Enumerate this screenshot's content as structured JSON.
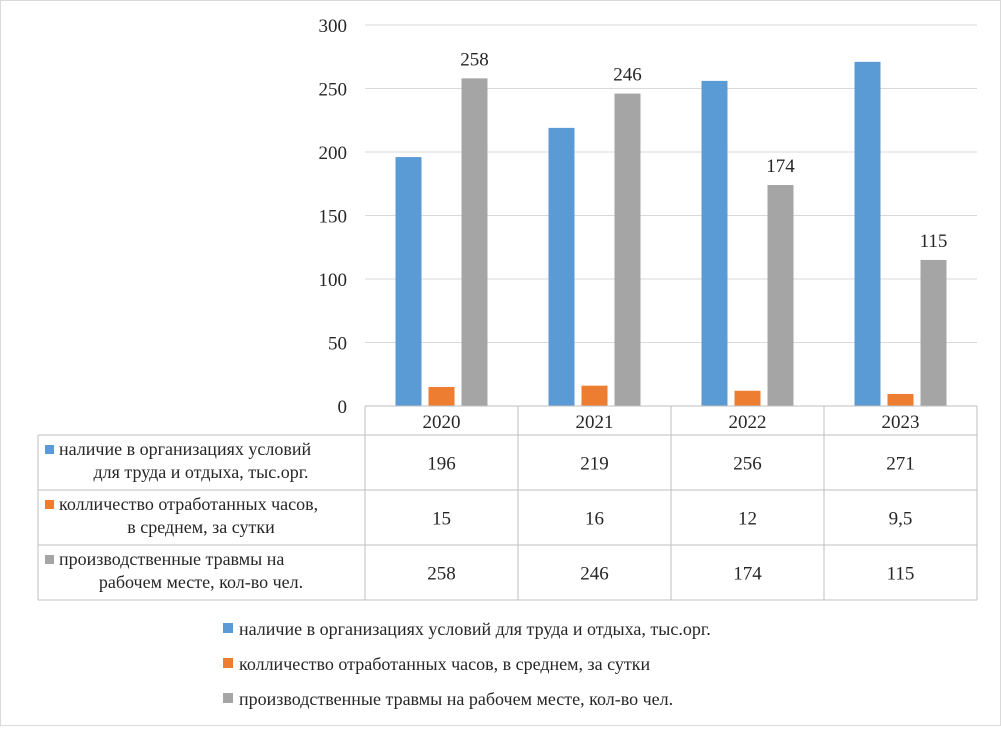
{
  "chart_data": {
    "type": "bar",
    "categories": [
      "2020",
      "2021",
      "2022",
      "2023"
    ],
    "ylim": [
      0,
      300
    ],
    "yticks": [
      0,
      50,
      100,
      150,
      200,
      250,
      300
    ],
    "grid": true,
    "legend_position": "bottom",
    "series": [
      {
        "name": "наличие в организациях условий для труда и отдыха, тыс.орг.",
        "table_label_lines": [
          "наличие в организациях условий",
          "для труда и отдыха, тыс.орг."
        ],
        "color": "#5b9bd5",
        "values": [
          196,
          219,
          256,
          271
        ],
        "table_values": [
          "196",
          "219",
          "256",
          "271"
        ],
        "show_data_labels": false
      },
      {
        "name": "колличество отработанных часов, в среднем, за сутки",
        "table_label_lines": [
          "колличество отработанных часов,",
          "в среднем, за сутки"
        ],
        "color": "#ed7d31",
        "values": [
          15,
          16,
          12,
          9.5
        ],
        "table_values": [
          "15",
          "16",
          "12",
          "9,5"
        ],
        "show_data_labels": false
      },
      {
        "name": "производственные травмы на рабочем месте, кол-во чел.",
        "table_label_lines": [
          "производственные травмы на",
          "рабочем месте, кол-во чел."
        ],
        "color": "#a5a5a5",
        "values": [
          258,
          246,
          174,
          115
        ],
        "table_values": [
          "258",
          "246",
          "174",
          "115"
        ],
        "show_data_labels": true,
        "data_labels": [
          "258",
          "246",
          "174",
          "115"
        ]
      }
    ]
  }
}
